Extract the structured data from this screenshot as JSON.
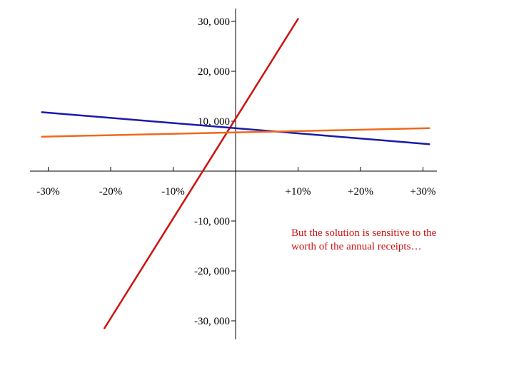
{
  "chart_data": {
    "type": "line",
    "x_tick_labels": [
      "-30%",
      "-20%",
      "-10%",
      "+10%",
      "+20%",
      "+30%"
    ],
    "x_ticks": [
      -30,
      -20,
      -10,
      10,
      20,
      30
    ],
    "y_tick_labels": [
      "30, 000",
      "20, 000",
      "10, 000",
      "-10, 000",
      "-20, 000",
      "-30, 000"
    ],
    "y_ticks": [
      30000,
      20000,
      10000,
      -10000,
      -20000,
      -30000
    ],
    "xlim": [
      -32,
      32
    ],
    "ylim": [
      -31000,
      31000
    ],
    "grid": false,
    "legend": "none",
    "series": [
      {
        "color": "#cc1111",
        "x": [
          -21,
          10
        ],
        "y": [
          -31500,
          30500
        ]
      },
      {
        "color": "#1a1aa8",
        "x": [
          -31,
          31
        ],
        "y": [
          11800,
          5400
        ]
      },
      {
        "color": "#ee6a1a",
        "x": [
          -31,
          31
        ],
        "y": [
          6900,
          8600
        ]
      }
    ]
  },
  "annotation": {
    "line1": "But the solution is sensitive to the",
    "line2": "worth of the annual receipts…"
  }
}
